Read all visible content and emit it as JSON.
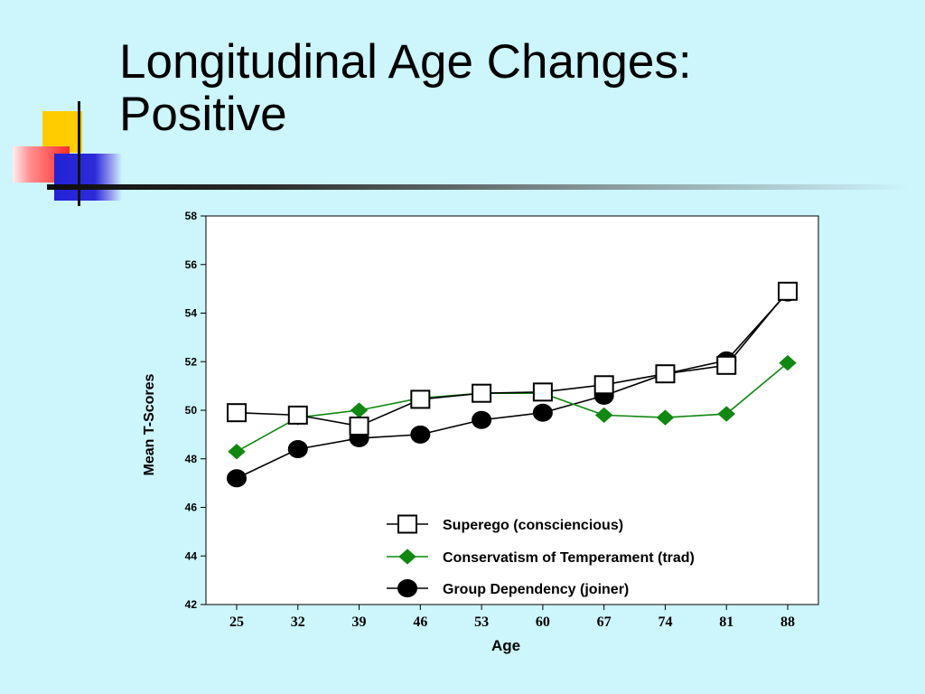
{
  "title": {
    "line1": "Longitudinal Age Changes:",
    "line2": "Positive"
  },
  "chart_data": {
    "type": "line",
    "xlabel": "Age",
    "ylabel": "Mean T-Scores",
    "categories": [
      25,
      32,
      39,
      46,
      53,
      60,
      67,
      74,
      81,
      88
    ],
    "ylim": [
      42,
      58
    ],
    "yticks": [
      42,
      44,
      46,
      48,
      50,
      52,
      54,
      56,
      58
    ],
    "grid": false,
    "legend_position": "bottom-right",
    "series": [
      {
        "name": "Superego (consciencious)",
        "marker": "square",
        "color": "#000000",
        "fill": "#ffffff",
        "values": [
          49.9,
          49.8,
          49.35,
          50.45,
          50.7,
          50.75,
          51.05,
          51.5,
          51.85,
          54.9
        ]
      },
      {
        "name": "Conservatism of Temperament (trad)",
        "marker": "diamond",
        "color": "#118811",
        "fill": "#118811",
        "values": [
          48.3,
          49.7,
          50.0,
          50.5,
          50.7,
          50.7,
          49.8,
          49.7,
          49.85,
          51.95
        ]
      },
      {
        "name": "Group Dependency (joiner)",
        "marker": "circle",
        "color": "#000000",
        "fill": "#000000",
        "values": [
          47.2,
          48.4,
          48.85,
          49.0,
          49.6,
          49.9,
          50.6,
          51.5,
          52.05,
          54.85
        ]
      }
    ]
  },
  "colors": {
    "background": "#ccf5fc",
    "plot_area": "#ffffff",
    "accent_yellow": "#ffcc00",
    "accent_red": "#ff2b2b",
    "accent_blue": "#2222d6"
  }
}
